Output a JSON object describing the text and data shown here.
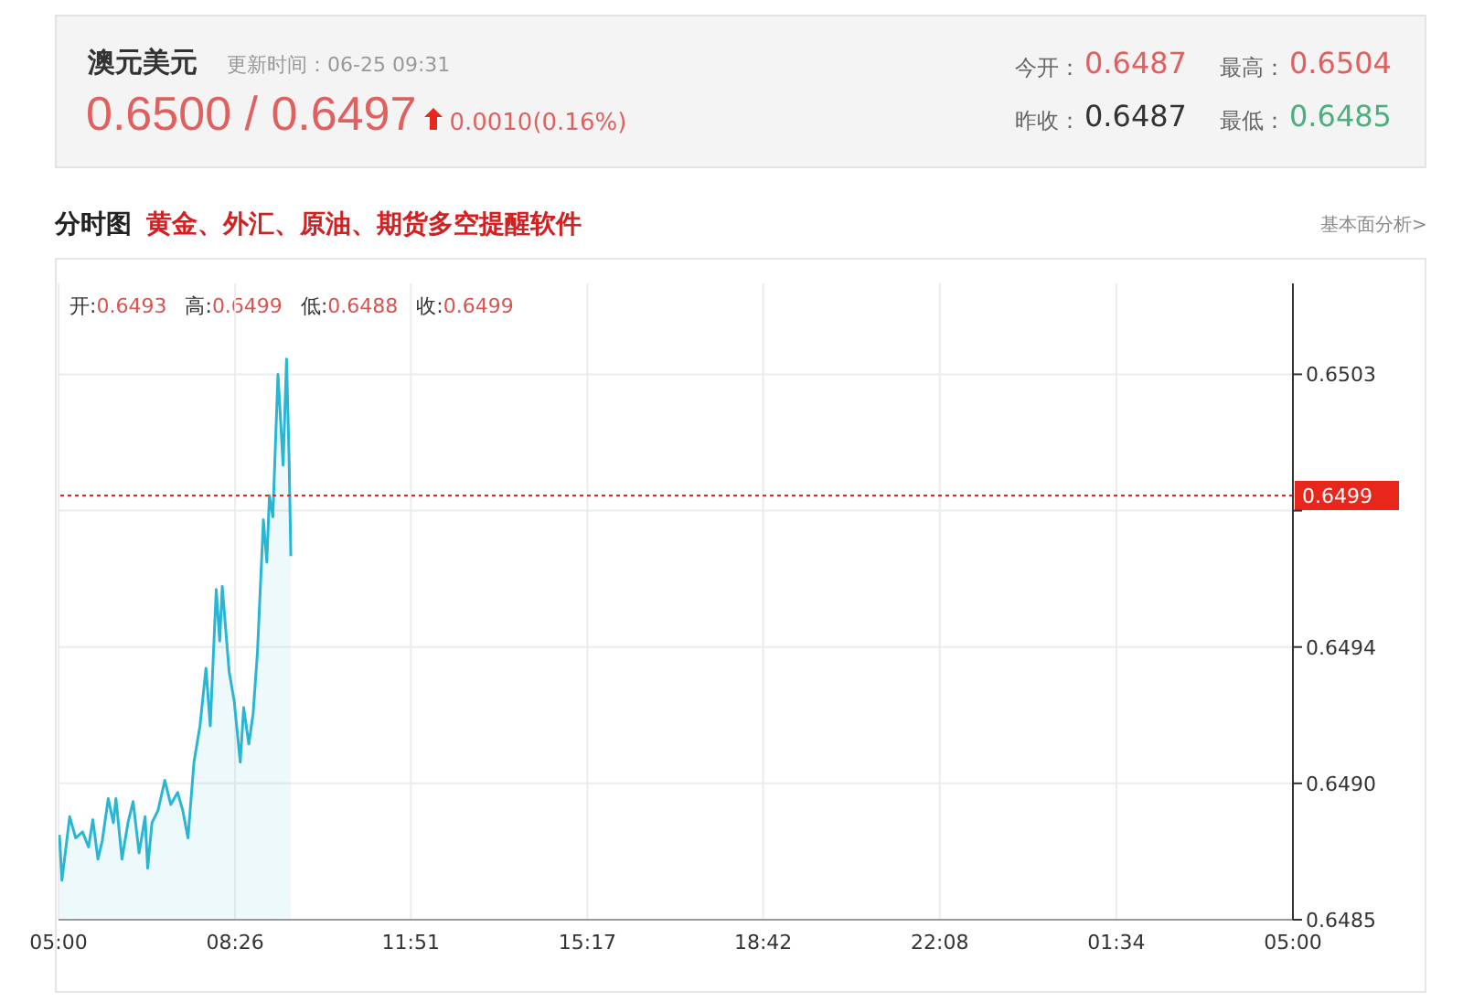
{
  "chart_data": {
    "type": "area",
    "title": "澳元美元",
    "subtitle": "更新时间：06-25 09:31",
    "annotations": [
      "0.6500 / 0.6497",
      "0.0010(0.16%)",
      "今开：",
      "0.6487",
      "最高：",
      "0.6504",
      "昨收：",
      "0.6487",
      "最低：",
      "0.6485",
      "分时图",
      "黄金、外汇、原油、期货多空提醒软件",
      "基本面分析>",
      "开:0.6493",
      "高:0.6499",
      "低:0.6488",
      "收:0.6499"
    ],
    "x": [
      "--06-25T05:01",
      "--06-25T05:04",
      "--06-25T05:13",
      "--06-25T05:20",
      "--06-25T05:28",
      "--06-25T05:35",
      "--06-25T05:40",
      "--06-25T05:46",
      "--06-25T05:51",
      "--06-25T05:58",
      "--06-25T06:04",
      "--06-25T06:07",
      "--06-25T06:14",
      "--06-25T06:21",
      "--06-25T06:27",
      "--06-25T06:34",
      "--06-25T06:41",
      "--06-25T06:44",
      "--06-25T06:49",
      "--06-25T06:56",
      "--06-25T07:04",
      "--06-25T07:11",
      "--06-25T07:19",
      "--06-25T07:25",
      "--06-25T07:31",
      "--06-25T07:38",
      "--06-25T07:45",
      "--06-25T07:52",
      "--06-25T07:57",
      "--06-25T08:04",
      "--06-25T08:08",
      "--06-25T08:11",
      "--06-25T08:19",
      "--06-25T08:25",
      "--06-25T08:32",
      "--06-25T08:36",
      "--06-25T08:42",
      "--06-25T08:47",
      "--06-25T08:52",
      "--06-25T08:59",
      "--06-25T09:03",
      "--06-25T09:06",
      "--06-25T09:10",
      "--06-25T09:16",
      "--06-25T09:22",
      "--06-25T09:26",
      "--06-25T09:29",
      "--06-25T09:31"
    ],
    "series": [
      {
        "color": "#29b6d2",
        "values": [
          0.64878,
          0.64863,
          0.64884,
          0.64877,
          0.64879,
          0.64874,
          0.64883,
          0.6487,
          0.64876,
          0.6489,
          0.64882,
          0.6489,
          0.6487,
          0.64882,
          0.64889,
          0.64872,
          0.64884,
          0.64867,
          0.64882,
          0.64886,
          0.64896,
          0.64888,
          0.64892,
          0.64886,
          0.64877,
          0.64902,
          0.64914,
          0.64933,
          0.64914,
          0.64959,
          0.64942,
          0.6496,
          0.64932,
          0.64922,
          0.64902,
          0.6492,
          0.64908,
          0.64918,
          0.64938,
          0.64982,
          0.64968,
          0.6499,
          0.64983,
          0.6503,
          0.65,
          0.65035,
          0.65002,
          0.6497
        ]
      }
    ],
    "xlim": [
      "--06-25T05:00",
      "--06-26T05:00"
    ],
    "xticks": [
      {
        "value": "--06-25T05:00",
        "label": "05:00"
      },
      {
        "value": "--06-25T08:26",
        "label": "08:26"
      },
      {
        "value": "--06-25T11:51",
        "label": "11:51"
      },
      {
        "value": "--06-25T15:17",
        "label": "15:17"
      },
      {
        "value": "--06-25T18:42",
        "label": "18:42"
      },
      {
        "value": "--06-25T22:08",
        "label": "22:08"
      },
      {
        "value": "--06-26T01:34",
        "label": "01:34"
      },
      {
        "value": "--06-26T05:00",
        "label": "05:00"
      }
    ],
    "ylim": [
      0.6485,
      0.6506
    ],
    "yticks": [
      0.6485,
      {
        "value": 0.64895,
        "label": "0.6490"
      },
      0.6494,
      {
        "value": 0.64985,
        "label": null
      },
      0.6503
    ],
    "ref_lines": [
      {
        "axis": "y",
        "value": 0.6499,
        "label": "0.6499",
        "color": "#e8271c",
        "line_style": "dotted"
      }
    ],
    "grid": true,
    "marker": "none"
  }
}
